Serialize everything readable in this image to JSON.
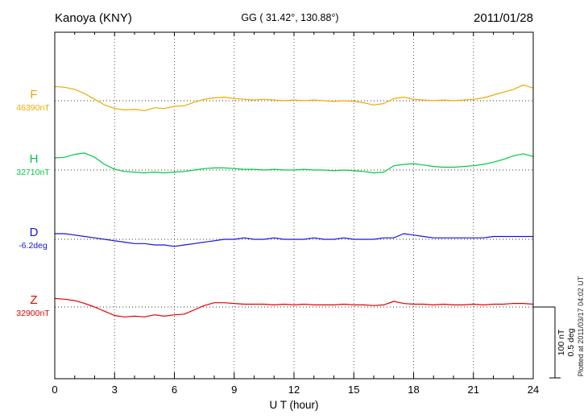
{
  "header": {
    "station": "Kanoya (KNY)",
    "coordinates": "GG ( 31.42°, 130.88°)",
    "date": "2011/01/28"
  },
  "axis": {
    "xlabel": "U T (hour)",
    "xmin": 0,
    "xmax": 24,
    "major_ticks": [
      0,
      3,
      6,
      9,
      12,
      15,
      18,
      21,
      24
    ],
    "minor_tick_step_hours": 1,
    "grid": "dotted-vertical-at-major-ticks"
  },
  "scale_bar": {
    "label_nt": "100 nT",
    "label_deg": "0.5 deg",
    "nT_per_division": 100,
    "deg_per_division": 0.5
  },
  "footer_note": "Plotted at 2011/03/17 04:02 UT",
  "chart_data": {
    "type": "line",
    "title": "Kanoya (KNY) magnetogram 2011/01/28",
    "xlabel": "U T (hour)",
    "x_start_hour": 0,
    "x_step_hours": 0.5,
    "series": [
      {
        "name": "F",
        "label": "F",
        "value_label": "46390nT",
        "baseline_value": 46390,
        "unit": "nT",
        "color": "#f0a800",
        "offsets": [
          20,
          19,
          16,
          10,
          2,
          -6,
          -11,
          -13,
          -12,
          -14,
          -10,
          -11,
          -8,
          -7,
          -2,
          2,
          4,
          5,
          3,
          2,
          1,
          2,
          1,
          0,
          1,
          0,
          1,
          0,
          -1,
          0,
          -1,
          -3,
          -6,
          -4,
          3,
          5,
          2,
          1,
          0,
          1,
          0,
          1,
          2,
          4,
          8,
          12,
          16,
          22,
          18
        ]
      },
      {
        "name": "H",
        "label": "H",
        "value_label": "32710nT",
        "baseline_value": 32710,
        "unit": "nT",
        "color": "#00c846",
        "offsets": [
          17,
          18,
          22,
          24,
          18,
          8,
          1,
          -2,
          -3,
          -4,
          -3,
          -4,
          -3,
          -2,
          0,
          2,
          3,
          3,
          2,
          1,
          1,
          0,
          1,
          0,
          0,
          1,
          0,
          0,
          -1,
          0,
          -1,
          -2,
          -4,
          -3,
          6,
          8,
          9,
          7,
          5,
          4,
          4,
          5,
          6,
          8,
          11,
          15,
          20,
          23,
          19
        ]
      },
      {
        "name": "D",
        "label": "D",
        "value_label": "-6.2deg",
        "baseline_value": -6.2,
        "unit": "deg",
        "color": "#1414dc",
        "offsets": [
          0.04,
          0.04,
          0.03,
          0.02,
          0.01,
          0,
          -0.01,
          -0.02,
          -0.03,
          -0.03,
          -0.04,
          -0.04,
          -0.05,
          -0.04,
          -0.03,
          -0.02,
          -0.01,
          0,
          0,
          0.01,
          0,
          0,
          0.01,
          0,
          0,
          0,
          0.01,
          0,
          0,
          0.01,
          0,
          0,
          0,
          0.01,
          0.01,
          0.04,
          0.03,
          0.02,
          0.01,
          0.01,
          0.01,
          0.01,
          0.01,
          0.01,
          0.02,
          0.02,
          0.02,
          0.02,
          0.02
        ]
      },
      {
        "name": "Z",
        "label": "Z",
        "value_label": "32900nT",
        "baseline_value": 32900,
        "unit": "nT",
        "color": "#e60000",
        "offsets": [
          12,
          11,
          9,
          5,
          0,
          -6,
          -12,
          -14,
          -13,
          -14,
          -11,
          -13,
          -11,
          -10,
          -4,
          2,
          6,
          6,
          5,
          4,
          4,
          4,
          3,
          4,
          3,
          4,
          3,
          3,
          3,
          4,
          3,
          3,
          2,
          3,
          8,
          5,
          4,
          4,
          3,
          4,
          3,
          3,
          4,
          3,
          4,
          4,
          5,
          5,
          4
        ]
      }
    ]
  }
}
